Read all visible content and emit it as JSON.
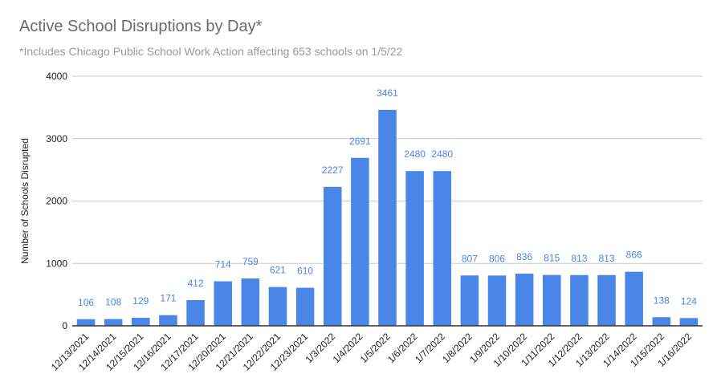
{
  "chart_data": {
    "type": "bar",
    "title": "Active School Disruptions by Day*",
    "subtitle": "*Includes Chicago Public School Work Action affecting 653 schools on 1/5/22",
    "xlabel": "",
    "ylabel": "Number of Schools Disrupted",
    "ylim": [
      0,
      4000
    ],
    "yticks": [
      0,
      1000,
      2000,
      3000,
      4000
    ],
    "grid": true,
    "bar_color": "#4a86e8",
    "label_color": "#4a86e8",
    "categories": [
      "12/13/2021",
      "12/14/2021",
      "12/15/2021",
      "12/16/2021",
      "12/17/2021",
      "12/20/2021",
      "12/21/2021",
      "12/22/2021",
      "12/23/2021",
      "1/3/2022",
      "1/4/2022",
      "1/5/2022",
      "1/6/2022",
      "1/7/2022",
      "1/8/2022",
      "1/9/2022",
      "1/10/2022",
      "1/11/2022",
      "1/12/2022",
      "1/13/2022",
      "1/14/2022",
      "1/15/2022",
      "1/16/2022"
    ],
    "values": [
      106,
      108,
      129,
      171,
      412,
      714,
      759,
      621,
      610,
      2227,
      2691,
      3461,
      2480,
      2480,
      807,
      806,
      836,
      815,
      813,
      813,
      866,
      138,
      124
    ]
  }
}
